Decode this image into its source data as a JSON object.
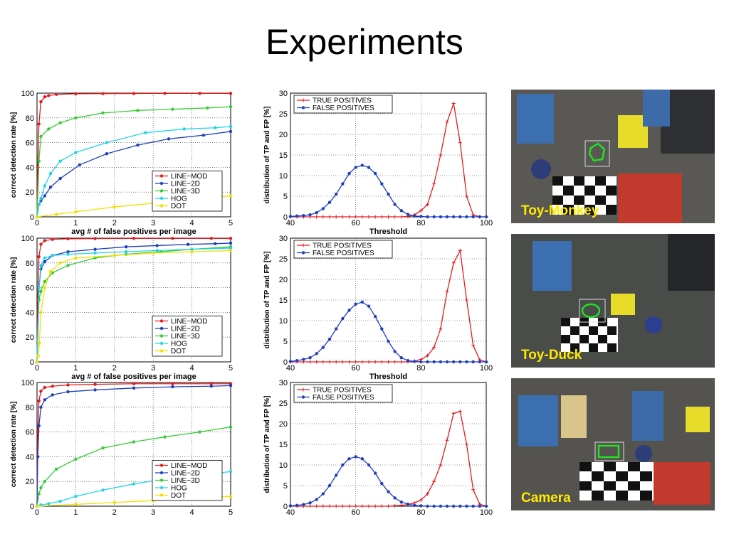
{
  "slide": {
    "title": "Experiments"
  },
  "chart_data": [
    {
      "type": "line",
      "panel": "detection-rate-toy-monkey",
      "xlabel": "avg # of false positives per image",
      "ylabel": "correct detection rate [%]",
      "xlim": [
        0,
        5
      ],
      "ylim": [
        0,
        100
      ],
      "xticks": [
        "0",
        "1",
        "2",
        "3",
        "4",
        "5"
      ],
      "yticks": [
        "0",
        "20",
        "40",
        "60",
        "80",
        "100"
      ],
      "grid": true,
      "legend_position": "lower-right",
      "series": [
        {
          "name": "LINE−MOD",
          "color": "#e41a1c",
          "x": [
            0,
            0.02,
            0.05,
            0.1,
            0.2,
            0.3,
            0.5,
            1,
            1.7,
            2.5,
            3.3,
            4.2,
            5
          ],
          "y": [
            0,
            40,
            75,
            93,
            97,
            98,
            99,
            99.5,
            99.6,
            99.7,
            99.8,
            99.8,
            99.8
          ]
        },
        {
          "name": "LINE−2D",
          "color": "#1f3fbf",
          "x": [
            0,
            0.05,
            0.1,
            0.2,
            0.35,
            0.6,
            1.1,
            1.8,
            2.6,
            3.4,
            4.3,
            5
          ],
          "y": [
            0,
            10,
            13,
            17,
            24,
            31,
            42,
            51,
            58,
            63,
            66,
            69
          ]
        },
        {
          "name": "LINE−3D",
          "color": "#33cc33",
          "x": [
            0,
            0.05,
            0.1,
            0.3,
            0.6,
            1,
            1.7,
            2.6,
            3.5,
            4.4,
            5
          ],
          "y": [
            0,
            45,
            65,
            71,
            76,
            80,
            84,
            86,
            87,
            88,
            89
          ]
        },
        {
          "name": "HOG",
          "color": "#22d3e6",
          "x": [
            0,
            0.05,
            0.1,
            0.2,
            0.35,
            0.6,
            1,
            1.8,
            2.8,
            3.8,
            4.6,
            5
          ],
          "y": [
            0,
            10,
            15,
            25,
            35,
            45,
            52,
            60,
            68,
            71,
            72,
            73
          ]
        },
        {
          "name": "DOT",
          "color": "#f0e000",
          "x": [
            0,
            0.5,
            1,
            2,
            3,
            4,
            5
          ],
          "y": [
            0,
            2,
            4,
            8,
            11,
            14,
            17
          ]
        }
      ]
    },
    {
      "type": "line",
      "panel": "threshold-distribution-toy-monkey",
      "xlabel": "Threshold",
      "ylabel": "distribution of TP and FP [%]",
      "xlim": [
        40,
        100
      ],
      "ylim": [
        0,
        30
      ],
      "xticks": [
        "40",
        "60",
        "80",
        "100"
      ],
      "yticks": [
        "0",
        "5",
        "10",
        "15",
        "20",
        "25",
        "30"
      ],
      "grid": true,
      "legend_position": "top-left",
      "series": [
        {
          "name": "TRUE POSITIVES",
          "color": "#e41a1c",
          "marker": "plus",
          "x": [
            40,
            42,
            44,
            46,
            48,
            50,
            52,
            54,
            56,
            58,
            60,
            62,
            64,
            66,
            68,
            70,
            72,
            74,
            76,
            78,
            80,
            82,
            84,
            86,
            88,
            90,
            92,
            94,
            96,
            98,
            100
          ],
          "y": [
            0,
            0,
            0,
            0,
            0,
            0,
            0,
            0,
            0,
            0,
            0,
            0,
            0,
            0,
            0,
            0,
            0,
            0,
            0.1,
            0.5,
            1.5,
            3,
            8,
            15,
            23,
            27.5,
            18,
            5,
            0.5,
            0,
            0
          ]
        },
        {
          "name": "FALSE POSITIVES",
          "color": "#1f3fbf",
          "marker": "dot",
          "x": [
            40,
            42,
            44,
            46,
            48,
            50,
            52,
            54,
            56,
            58,
            60,
            62,
            64,
            66,
            68,
            70,
            72,
            74,
            76,
            78,
            80,
            82,
            84,
            86,
            88,
            90,
            92,
            94,
            96,
            98,
            100
          ],
          "y": [
            0.1,
            0.2,
            0.3,
            0.5,
            1,
            2,
            3.5,
            5.5,
            8,
            10.5,
            12,
            12.5,
            12,
            10.5,
            8,
            5.5,
            3,
            1.5,
            0.6,
            0.2,
            0.1,
            0,
            0,
            0,
            0,
            0,
            0,
            0,
            0,
            0,
            0
          ]
        }
      ]
    },
    {
      "type": "line",
      "panel": "detection-rate-toy-duck",
      "xlabel": "avg # of false positives per image",
      "ylabel": "correct detection rate [%]",
      "xlim": [
        0,
        5
      ],
      "ylim": [
        0,
        100
      ],
      "xticks": [
        "0",
        "1",
        "2",
        "3",
        "4",
        "5"
      ],
      "yticks": [
        "0",
        "20",
        "40",
        "60",
        "80",
        "100"
      ],
      "grid": true,
      "legend_position": "lower-right",
      "series": [
        {
          "name": "LINE−MOD",
          "color": "#e41a1c",
          "x": [
            0,
            0.02,
            0.05,
            0.1,
            0.2,
            0.4,
            0.8,
            1.5,
            2.5,
            3.5,
            4.5,
            5
          ],
          "y": [
            0,
            50,
            85,
            95,
            98,
            99,
            99.5,
            99.7,
            99.8,
            99.8,
            99.8,
            99.8
          ]
        },
        {
          "name": "LINE−2D",
          "color": "#1f3fbf",
          "x": [
            0,
            0.05,
            0.1,
            0.2,
            0.4,
            0.8,
            1.5,
            2.3,
            3.1,
            3.9,
            4.6,
            5
          ],
          "y": [
            0,
            60,
            75,
            81,
            86,
            89,
            91,
            93,
            94,
            95,
            95.5,
            96
          ]
        },
        {
          "name": "LINE−3D",
          "color": "#33cc33",
          "x": [
            0,
            0.05,
            0.1,
            0.2,
            0.4,
            0.8,
            1.5,
            2.3,
            3.2,
            4,
            5
          ],
          "y": [
            0,
            50,
            57,
            65,
            72,
            78,
            84,
            87,
            89,
            91,
            93
          ]
        },
        {
          "name": "HOG",
          "color": "#22d3e6",
          "x": [
            0,
            0.05,
            0.1,
            0.2,
            0.4,
            0.8,
            1.5,
            2.3,
            3.1,
            4,
            5
          ],
          "y": [
            0,
            60,
            78,
            84,
            86,
            87,
            88,
            89,
            90,
            91,
            92
          ]
        },
        {
          "name": "DOT",
          "color": "#f0e000",
          "x": [
            0,
            0.03,
            0.06,
            0.1,
            0.2,
            0.35,
            0.6,
            1,
            2,
            3,
            4,
            5
          ],
          "y": [
            0,
            5,
            15,
            40,
            60,
            73,
            80,
            84,
            86,
            88,
            89,
            90
          ]
        }
      ]
    },
    {
      "type": "line",
      "panel": "threshold-distribution-toy-duck",
      "xlabel": "Threshold",
      "ylabel": "distribution of TP and FP [%]",
      "xlim": [
        40,
        100
      ],
      "ylim": [
        0,
        30
      ],
      "xticks": [
        "40",
        "60",
        "80",
        "100"
      ],
      "yticks": [
        "0",
        "5",
        "10",
        "15",
        "20",
        "25",
        "30"
      ],
      "grid": true,
      "legend_position": "top-left",
      "series": [
        {
          "name": "TRUE POSITIVES",
          "color": "#e41a1c",
          "marker": "plus",
          "x": [
            40,
            42,
            44,
            46,
            48,
            50,
            52,
            54,
            56,
            58,
            60,
            62,
            64,
            66,
            68,
            70,
            72,
            74,
            76,
            78,
            80,
            82,
            84,
            86,
            88,
            90,
            92,
            94,
            96,
            98,
            100
          ],
          "y": [
            0,
            0,
            0,
            0,
            0,
            0,
            0,
            0,
            0,
            0,
            0,
            0,
            0,
            0,
            0,
            0,
            0,
            0,
            0,
            0.2,
            0.6,
            1.5,
            3.5,
            8,
            17,
            24,
            27,
            15,
            4,
            0.5,
            0
          ]
        },
        {
          "name": "FALSE POSITIVES",
          "color": "#1f3fbf",
          "marker": "dot",
          "x": [
            40,
            42,
            44,
            46,
            48,
            50,
            52,
            54,
            56,
            58,
            60,
            62,
            64,
            66,
            68,
            70,
            72,
            74,
            76,
            78,
            80,
            82,
            84,
            86,
            88,
            90,
            92,
            94,
            96,
            98,
            100
          ],
          "y": [
            0.1,
            0.3,
            0.6,
            1,
            2,
            3.5,
            5.5,
            8,
            10.5,
            12.5,
            14,
            14.5,
            13.5,
            11,
            8,
            5,
            2.5,
            1,
            0.3,
            0.1,
            0,
            0,
            0,
            0,
            0,
            0,
            0,
            0,
            0,
            0,
            0
          ]
        }
      ]
    },
    {
      "type": "line",
      "panel": "detection-rate-camera",
      "xlabel": "",
      "ylabel": "correct detection rate [%]",
      "xlim": [
        0,
        5
      ],
      "ylim": [
        0,
        100
      ],
      "xticks": [
        "0",
        "1",
        "2",
        "3",
        "4",
        "5"
      ],
      "yticks": [
        "0",
        "20",
        "40",
        "60",
        "80",
        "100"
      ],
      "grid": true,
      "legend_position": "lower-right",
      "series": [
        {
          "name": "LINE−MOD",
          "color": "#e41a1c",
          "x": [
            0,
            0.02,
            0.05,
            0.1,
            0.2,
            0.4,
            0.8,
            1.5,
            2.5,
            3.5,
            4.5,
            5
          ],
          "y": [
            0,
            60,
            85,
            93,
            96,
            97,
            98,
            98.5,
            99,
            99,
            99,
            99
          ]
        },
        {
          "name": "LINE−2D",
          "color": "#1f3fbf",
          "x": [
            0,
            0.02,
            0.05,
            0.1,
            0.2,
            0.4,
            0.8,
            1.5,
            2.5,
            3.5,
            4.5,
            5
          ],
          "y": [
            0,
            40,
            65,
            80,
            86,
            90,
            92.5,
            94,
            95.5,
            96.5,
            97,
            97.5
          ]
        },
        {
          "name": "LINE−3D",
          "color": "#33cc33",
          "x": [
            0,
            0.05,
            0.1,
            0.2,
            0.5,
            1,
            1.7,
            2.5,
            3.3,
            4.2,
            5
          ],
          "y": [
            0,
            10,
            15,
            20,
            30,
            38,
            47,
            52,
            56,
            60,
            64
          ]
        },
        {
          "name": "HOG",
          "color": "#22d3e6",
          "x": [
            0,
            0.1,
            0.3,
            0.6,
            1,
            1.7,
            2.5,
            3.3,
            4.2,
            5
          ],
          "y": [
            0,
            1,
            2,
            4,
            8,
            13,
            18,
            22,
            25,
            28
          ]
        },
        {
          "name": "DOT",
          "color": "#f0e000",
          "x": [
            0,
            1,
            2,
            3,
            4,
            5
          ],
          "y": [
            0,
            1.5,
            3,
            4.5,
            6,
            8
          ]
        }
      ]
    },
    {
      "type": "line",
      "panel": "threshold-distribution-camera",
      "xlabel": "",
      "ylabel": "distribution of TP and FP [%]",
      "xlim": [
        40,
        100
      ],
      "ylim": [
        0,
        30
      ],
      "xticks": [
        "40",
        "60",
        "80",
        "100"
      ],
      "yticks": [
        "0",
        "5",
        "10",
        "15",
        "20",
        "25",
        "30"
      ],
      "grid": true,
      "legend_position": "top-left",
      "series": [
        {
          "name": "TRUE POSITIVES",
          "color": "#e41a1c",
          "marker": "plus",
          "x": [
            40,
            42,
            44,
            46,
            48,
            50,
            52,
            54,
            56,
            58,
            60,
            62,
            64,
            66,
            68,
            70,
            72,
            74,
            76,
            78,
            80,
            82,
            84,
            86,
            88,
            90,
            92,
            94,
            96,
            98,
            100
          ],
          "y": [
            0,
            0,
            0,
            0,
            0,
            0,
            0,
            0,
            0,
            0,
            0,
            0,
            0,
            0,
            0,
            0,
            0.1,
            0.2,
            0.4,
            0.8,
            1.5,
            3,
            6,
            10,
            16,
            22.5,
            23,
            15,
            4,
            0.5,
            0
          ]
        },
        {
          "name": "FALSE POSITIVES",
          "color": "#1f3fbf",
          "marker": "dot",
          "x": [
            40,
            42,
            44,
            46,
            48,
            50,
            52,
            54,
            56,
            58,
            60,
            62,
            64,
            66,
            68,
            70,
            72,
            74,
            76,
            78,
            80,
            82,
            84,
            86,
            88,
            90,
            92,
            94,
            96,
            98,
            100
          ],
          "y": [
            0.1,
            0.2,
            0.4,
            0.8,
            1.6,
            3,
            5,
            7.5,
            10,
            11.5,
            12,
            11.5,
            10,
            8,
            5.5,
            3.5,
            2,
            1,
            0.5,
            0.2,
            0.1,
            0,
            0,
            0,
            0,
            0,
            0,
            0,
            0,
            0,
            0
          ]
        }
      ]
    }
  ],
  "photos": [
    {
      "label": "Toy-Monkey",
      "detection_color": "#22e022"
    },
    {
      "label": "Toy-Duck",
      "detection_color": "#22e022"
    },
    {
      "label": "Camera",
      "detection_color": "#22e022"
    }
  ],
  "colors": {
    "label_text": "#ffea00",
    "photo_background": "#4a4a48"
  }
}
